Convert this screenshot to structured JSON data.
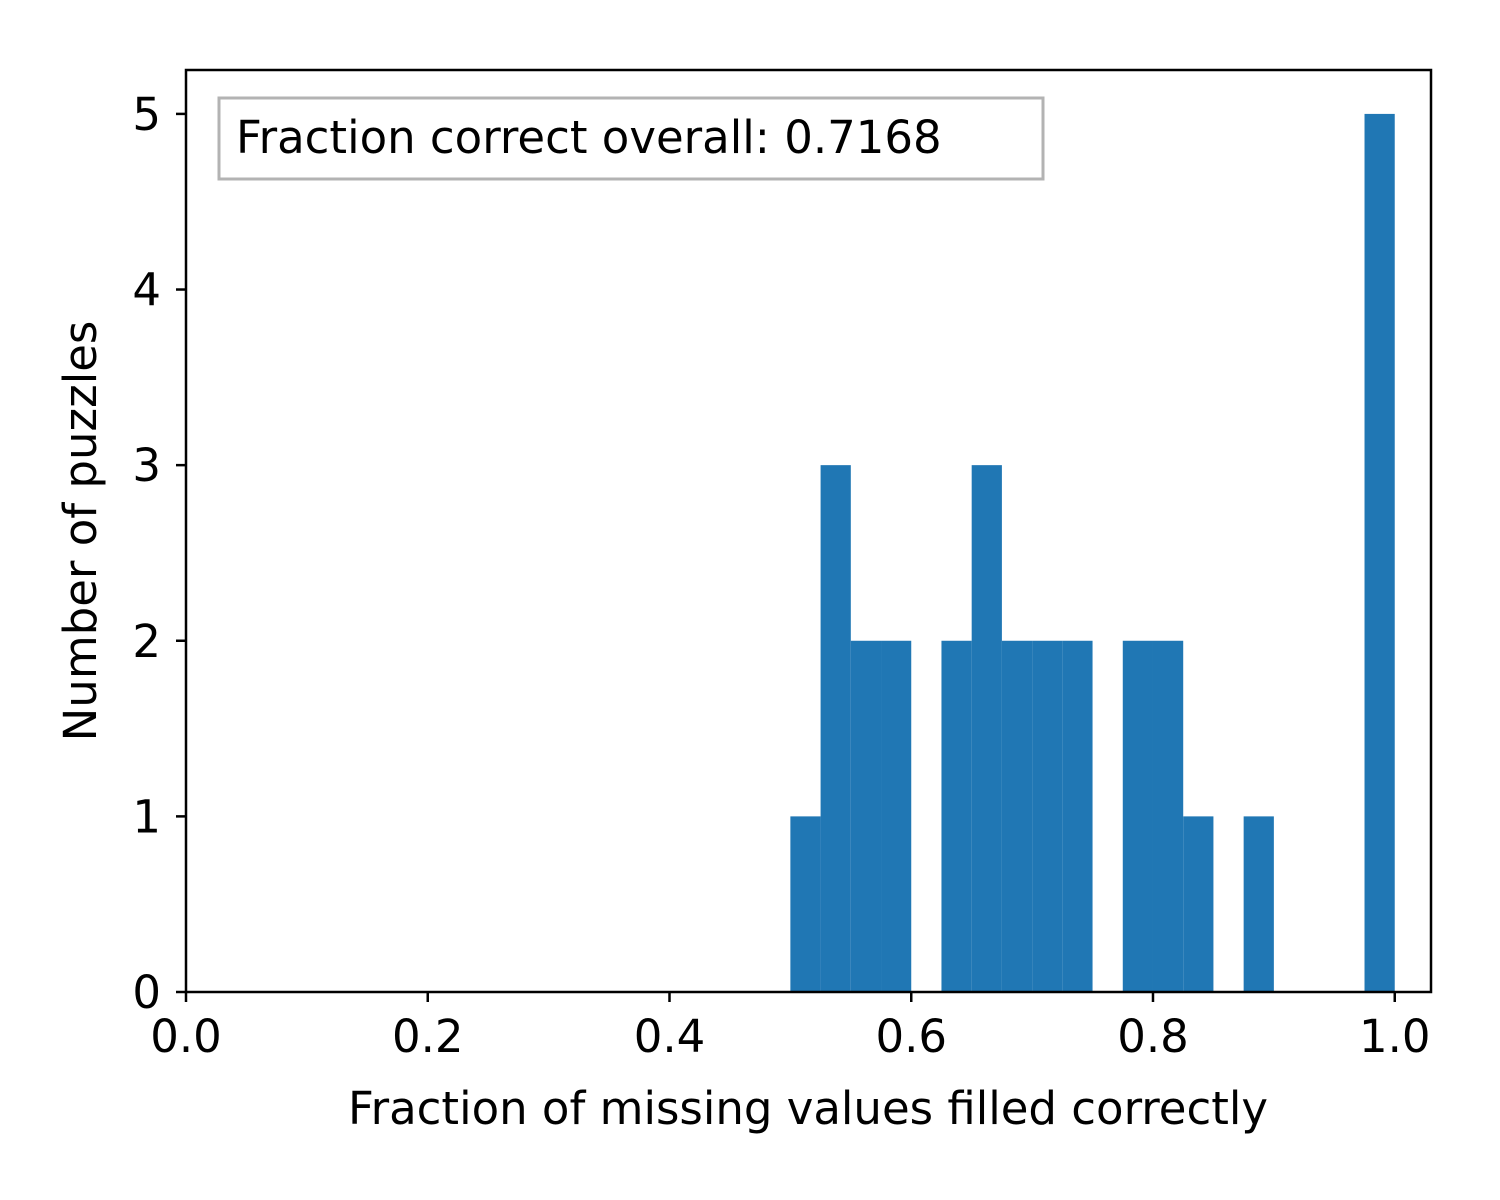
{
  "chart_data": {
    "type": "bar",
    "subtype": "histogram",
    "bin_width": 0.025,
    "bins": [
      {
        "start": 0.5,
        "end": 0.525,
        "count": 1
      },
      {
        "start": 0.525,
        "end": 0.55,
        "count": 3
      },
      {
        "start": 0.55,
        "end": 0.575,
        "count": 2
      },
      {
        "start": 0.575,
        "end": 0.6,
        "count": 2
      },
      {
        "start": 0.625,
        "end": 0.65,
        "count": 2
      },
      {
        "start": 0.65,
        "end": 0.675,
        "count": 3
      },
      {
        "start": 0.675,
        "end": 0.7,
        "count": 2
      },
      {
        "start": 0.7,
        "end": 0.725,
        "count": 2
      },
      {
        "start": 0.725,
        "end": 0.75,
        "count": 2
      },
      {
        "start": 0.775,
        "end": 0.8,
        "count": 2
      },
      {
        "start": 0.8,
        "end": 0.825,
        "count": 2
      },
      {
        "start": 0.825,
        "end": 0.85,
        "count": 1
      },
      {
        "start": 0.875,
        "end": 0.9,
        "count": 1
      },
      {
        "start": 0.975,
        "end": 1.0,
        "count": 5
      }
    ],
    "xlabel": "Fraction of missing values filled correctly",
    "ylabel": "Number of puzzles",
    "xlim": [
      0.0,
      1.03
    ],
    "ylim": [
      0,
      5.25
    ],
    "xticks": [
      "0.0",
      "0.2",
      "0.4",
      "0.6",
      "0.8",
      "1.0"
    ],
    "yticks": [
      "0",
      "1",
      "2",
      "3",
      "4",
      "5"
    ],
    "annotation": "Fraction correct overall: 0.7168",
    "annotation_position": "top-left",
    "bar_color": "#2077b4",
    "grid": false
  }
}
